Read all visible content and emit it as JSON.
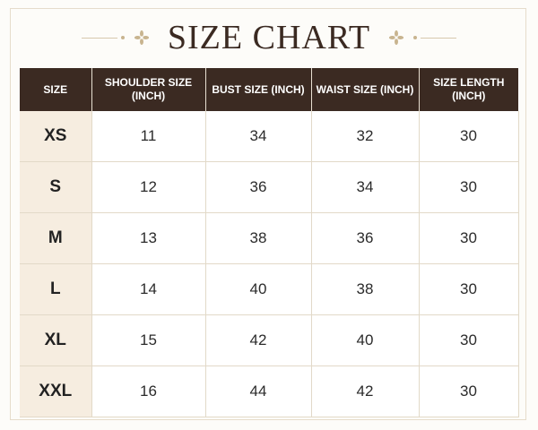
{
  "title": "SIZE CHART",
  "table": {
    "headers": [
      "SIZE",
      "SHOULDER SIZE (INCH)",
      "BUST SIZE (INCH)",
      "WAIST SIZE (INCH)",
      "SIZE LENGTH (INCH)"
    ],
    "rows": [
      [
        "XS",
        "11",
        "34",
        "32",
        "30"
      ],
      [
        "S",
        "12",
        "36",
        "34",
        "30"
      ],
      [
        "M",
        "13",
        "38",
        "36",
        "30"
      ],
      [
        "L",
        "14",
        "40",
        "38",
        "30"
      ],
      [
        "XL",
        "15",
        "42",
        "40",
        "30"
      ],
      [
        "XXL",
        "16",
        "44",
        "42",
        "30"
      ]
    ]
  },
  "colors": {
    "header_bg": "#3b2a22",
    "size_column_bg": "#f6ede0",
    "accent": "#c8b48f"
  },
  "icons": [
    "flower-ornament-icon"
  ]
}
